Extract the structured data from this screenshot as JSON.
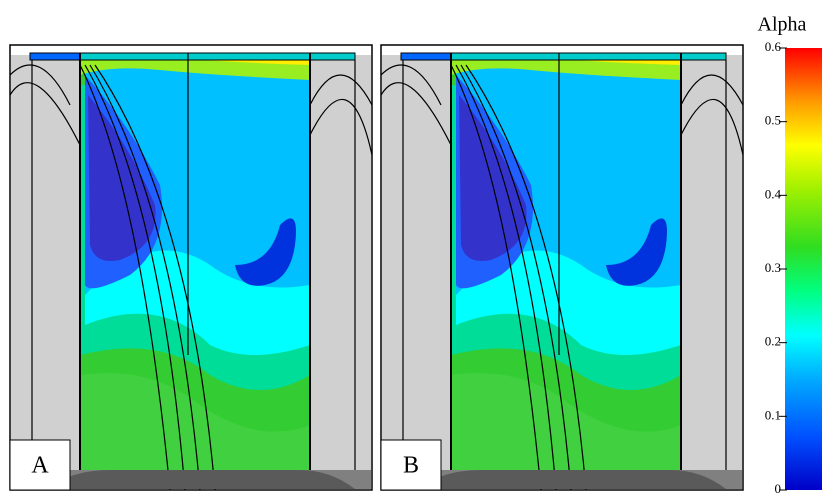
{
  "panels": [
    {
      "label": "A"
    },
    {
      "label": "B"
    }
  ],
  "colorbar": {
    "title": "Alpha",
    "lim": [
      0,
      0.6
    ],
    "ticks": [
      0,
      0.1,
      0.2,
      0.3,
      0.4,
      0.5,
      0.6
    ]
  }
}
